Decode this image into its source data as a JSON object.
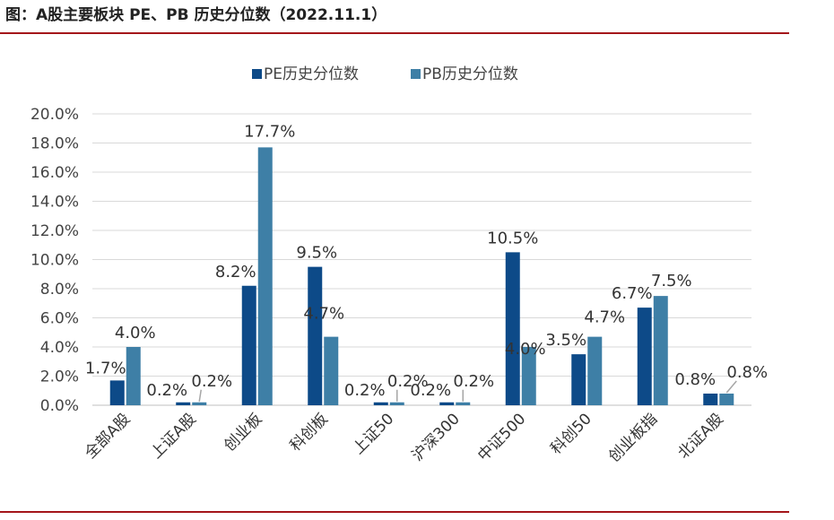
{
  "header": {
    "title": "图：A股主要板块 PE、PB 历史分位数（2022.11.1）"
  },
  "colors": {
    "rule": "#a4161a",
    "pe": "#0d4a88",
    "pb": "#3e7fa6",
    "grid": "#d9d9d9"
  },
  "chart_data": {
    "type": "bar",
    "categories": [
      "全部A股",
      "上证A股",
      "创业板",
      "科创板",
      "上证50",
      "沪深300",
      "中证500",
      "科创50",
      "创业板指",
      "北证A股"
    ],
    "series": [
      {
        "name": "PE历史分位数",
        "values": [
          1.7,
          0.2,
          8.2,
          9.5,
          0.2,
          0.2,
          10.5,
          3.5,
          6.7,
          0.8
        ]
      },
      {
        "name": "PB历史分位数",
        "values": [
          4.0,
          0.2,
          17.7,
          4.7,
          0.2,
          0.2,
          4.0,
          4.7,
          7.5,
          0.8
        ]
      }
    ],
    "data_labels": {
      "pe": [
        "1.7%",
        "0.2%",
        "8.2%",
        "9.5%",
        "0.2%",
        "0.2%",
        "10.5%",
        "3.5%",
        "6.7%",
        "0.8%"
      ],
      "pb": [
        "4.0%",
        "0.2%",
        "17.7%",
        "4.7%",
        "0.2%",
        "0.2%",
        "4.0%",
        "4.7%",
        "7.5%",
        "0.8%"
      ]
    },
    "yticks": [
      "0.0%",
      "2.0%",
      "4.0%",
      "6.0%",
      "8.0%",
      "10.0%",
      "12.0%",
      "14.0%",
      "16.0%",
      "18.0%",
      "20.0%"
    ],
    "ylim": [
      0,
      20
    ],
    "grid": true,
    "legend_position": "top-center"
  }
}
